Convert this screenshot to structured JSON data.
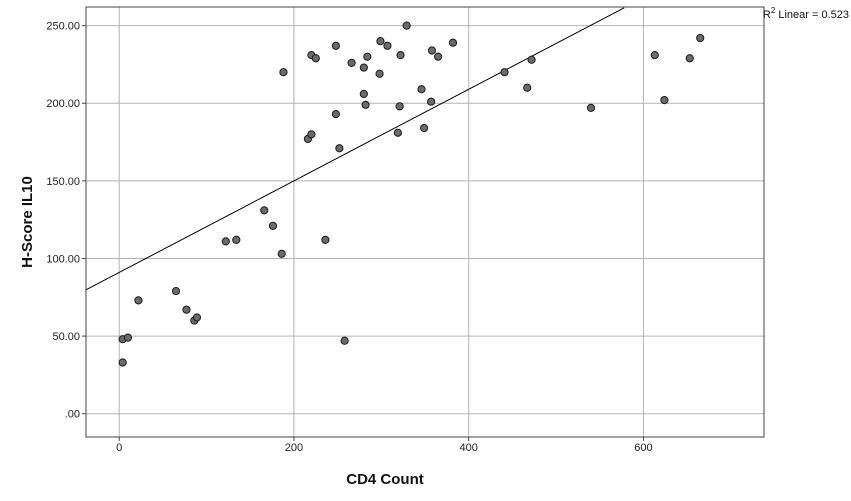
{
  "chart_data": {
    "type": "scatter",
    "xlabel": "CD4 Count",
    "ylabel": "H-Score IL10",
    "xlim": [
      -38,
      738
    ],
    "ylim": [
      -15,
      262
    ],
    "x_ticks": [
      0,
      200,
      400,
      600
    ],
    "x_tick_labels": [
      "0",
      "200",
      "400",
      "600"
    ],
    "y_ticks": [
      0,
      50,
      100,
      150,
      200,
      250
    ],
    "y_tick_labels": [
      ".00",
      "50.00",
      "100.00",
      "150.00",
      "200.00",
      "250.00"
    ],
    "grid": true,
    "points": [
      {
        "x": 4,
        "y": 48
      },
      {
        "x": 4,
        "y": 33
      },
      {
        "x": 10,
        "y": 49
      },
      {
        "x": 22,
        "y": 73
      },
      {
        "x": 65,
        "y": 79
      },
      {
        "x": 77,
        "y": 67
      },
      {
        "x": 86,
        "y": 60
      },
      {
        "x": 89,
        "y": 62
      },
      {
        "x": 122,
        "y": 111
      },
      {
        "x": 134,
        "y": 112
      },
      {
        "x": 166,
        "y": 131
      },
      {
        "x": 176,
        "y": 121
      },
      {
        "x": 186,
        "y": 103
      },
      {
        "x": 188,
        "y": 220
      },
      {
        "x": 216,
        "y": 177
      },
      {
        "x": 220,
        "y": 180
      },
      {
        "x": 220,
        "y": 231
      },
      {
        "x": 225,
        "y": 229
      },
      {
        "x": 236,
        "y": 112
      },
      {
        "x": 248,
        "y": 193
      },
      {
        "x": 248,
        "y": 237
      },
      {
        "x": 252,
        "y": 171
      },
      {
        "x": 258,
        "y": 47
      },
      {
        "x": 266,
        "y": 226
      },
      {
        "x": 280,
        "y": 206
      },
      {
        "x": 280,
        "y": 223
      },
      {
        "x": 282,
        "y": 199
      },
      {
        "x": 284,
        "y": 230
      },
      {
        "x": 298,
        "y": 219
      },
      {
        "x": 299,
        "y": 240
      },
      {
        "x": 307,
        "y": 237
      },
      {
        "x": 319,
        "y": 181
      },
      {
        "x": 321,
        "y": 198
      },
      {
        "x": 322,
        "y": 231
      },
      {
        "x": 329,
        "y": 250
      },
      {
        "x": 346,
        "y": 209
      },
      {
        "x": 349,
        "y": 184
      },
      {
        "x": 357,
        "y": 201
      },
      {
        "x": 358,
        "y": 234
      },
      {
        "x": 365,
        "y": 230
      },
      {
        "x": 382,
        "y": 239
      },
      {
        "x": 441,
        "y": 220
      },
      {
        "x": 467,
        "y": 210
      },
      {
        "x": 472,
        "y": 228
      },
      {
        "x": 540,
        "y": 197
      },
      {
        "x": 613,
        "y": 231
      },
      {
        "x": 624,
        "y": 202
      },
      {
        "x": 653,
        "y": 229
      },
      {
        "x": 665,
        "y": 242
      }
    ],
    "fit_line": {
      "intercept": 91.0,
      "slope": 0.295,
      "x_start": -38,
      "x_end": 578
    },
    "r2_label": {
      "prefix": "R",
      "superscript": "2",
      "suffix": " Linear = 0.523"
    },
    "colors": {
      "point_fill": "#6b6b6b",
      "point_stroke": "#1a1a1a",
      "grid": "#b4b4b4",
      "fit_line": "#000000"
    }
  }
}
